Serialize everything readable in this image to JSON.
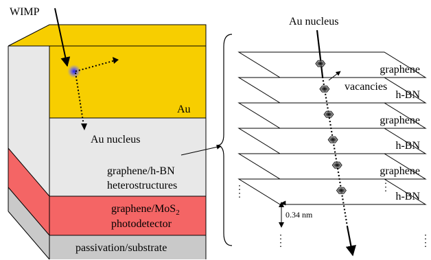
{
  "labels": {
    "wimp": "WIMP",
    "au_layer": "Au",
    "au_nucleus_left": "Au nucleus",
    "heterostructures_line1": "graphene/h-BN",
    "heterostructures_line2": "heterostructures",
    "photodetector_line1": "graphene/MoS",
    "photodetector_subscript": "2",
    "photodetector_line2": "photodetector",
    "passivation": "passivation/substrate",
    "au_nucleus_right": "Au nucleus",
    "vacancies": "vacancies",
    "spacing": "0.34 nm"
  },
  "layers": [
    "graphene",
    "h-BN",
    "graphene",
    "h-BN",
    "graphene",
    "h-BN"
  ],
  "colors": {
    "gold": "#f7ce00",
    "gold_side": "#e3b800",
    "grey_light": "#e8e8e8",
    "grey_side": "#d2d2d2",
    "red": "#f46565",
    "red_side": "#e04f4f",
    "substrate": "#c9c9c9",
    "substrate_side": "#b0b0b0",
    "glow": "#3a3aff"
  }
}
